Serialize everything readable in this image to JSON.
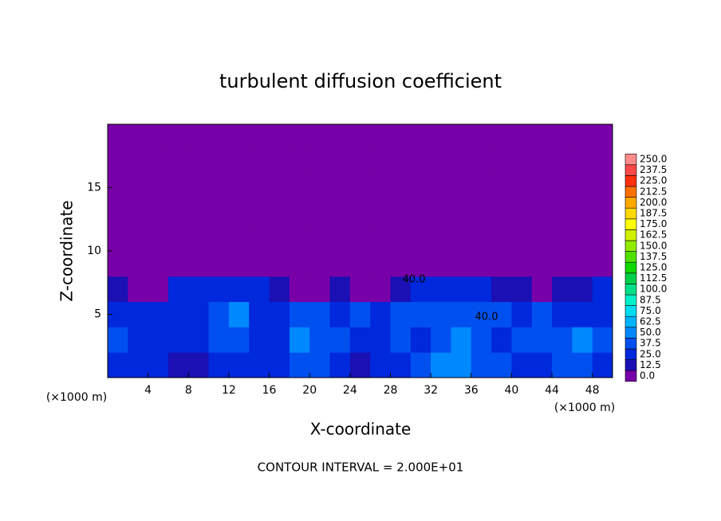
{
  "chart_data": {
    "type": "contour",
    "title": "turbulent diffusion coefficient",
    "x_label": "X-coordinate",
    "y_label": "Z-coordinate",
    "x_unit": "(×1000 m)",
    "y_unit": "(×1000 m)",
    "note": "CONTOUR INTERVAL = 2.000E+01",
    "xlim": [
      0,
      50
    ],
    "ylim": [
      0,
      20
    ],
    "xticks": [
      4,
      8,
      12,
      16,
      20,
      24,
      28,
      32,
      36,
      40,
      44,
      48
    ],
    "yticks": [
      5,
      10,
      15
    ],
    "contour_labels": [
      "40.0",
      "40.0"
    ],
    "levels": [
      {
        "value": 0,
        "label": "0.0"
      },
      {
        "value": 12.5,
        "label": "12.5"
      },
      {
        "value": 25,
        "label": "25.0"
      },
      {
        "value": 37.5,
        "label": "37.5"
      },
      {
        "value": 50,
        "label": "50.0"
      },
      {
        "value": 62.5,
        "label": "62.5"
      },
      {
        "value": 75,
        "label": "75.0"
      },
      {
        "value": 87.5,
        "label": "87.5"
      },
      {
        "value": 100,
        "label": "100.0"
      },
      {
        "value": 112.5,
        "label": "112.5"
      },
      {
        "value": 125,
        "label": "125.0"
      },
      {
        "value": 137.5,
        "label": "137.5"
      },
      {
        "value": 150,
        "label": "150.0"
      },
      {
        "value": 162.5,
        "label": "162.5"
      },
      {
        "value": 175,
        "label": "175.0"
      },
      {
        "value": 187.5,
        "label": "187.5"
      },
      {
        "value": 200,
        "label": "200.0"
      },
      {
        "value": 212.5,
        "label": "212.5"
      },
      {
        "value": 225,
        "label": "225.0"
      },
      {
        "value": 237.5,
        "label": "237.5"
      },
      {
        "value": 250,
        "label": "250.0"
      }
    ],
    "level_colors": [
      "#7800a8",
      "#1a10b4",
      "#0028dc",
      "#0050f0",
      "#0088ff",
      "#00b4ff",
      "#00dcf0",
      "#00f0c8",
      "#00e088",
      "#00d048",
      "#10d800",
      "#50e000",
      "#90ec00",
      "#d0f000",
      "#ffff00",
      "#ffd800",
      "#ffa800",
      "#ff7000",
      "#ff3010",
      "#ff4848",
      "#ff8a8a"
    ],
    "z": [
      [
        35,
        30,
        25,
        20,
        20,
        25,
        30,
        25,
        30,
        40,
        45,
        35,
        20,
        25,
        30,
        40,
        55,
        60,
        45,
        40,
        35,
        30,
        45,
        40,
        35
      ],
      [
        40,
        35,
        30,
        30,
        35,
        40,
        45,
        35,
        35,
        55,
        45,
        40,
        25,
        35,
        40,
        30,
        45,
        50,
        40,
        30,
        40,
        40,
        45,
        50,
        40
      ],
      [
        35,
        30,
        25,
        30,
        35,
        40,
        55,
        35,
        30,
        45,
        40,
        35,
        40,
        35,
        45,
        40,
        45,
        45,
        45,
        40,
        35,
        40,
        35,
        35,
        30
      ],
      [
        20,
        10,
        10,
        25,
        30,
        30,
        30,
        30,
        15,
        10,
        10,
        20,
        10,
        10,
        15,
        30,
        35,
        30,
        25,
        20,
        15,
        10,
        15,
        20,
        25
      ],
      [
        0,
        0,
        0,
        5,
        10,
        10,
        10,
        5,
        0,
        0,
        0,
        0,
        0,
        0,
        0,
        5,
        5,
        0,
        0,
        0,
        0,
        0,
        0,
        0,
        0
      ],
      [
        0,
        0,
        0,
        0,
        0,
        0,
        0,
        0,
        0,
        0,
        0,
        0,
        0,
        0,
        0,
        0,
        0,
        0,
        0,
        0,
        0,
        0,
        0,
        0,
        0
      ],
      [
        0,
        0,
        0,
        0,
        0,
        0,
        0,
        0,
        0,
        0,
        0,
        0,
        0,
        0,
        0,
        0,
        0,
        0,
        0,
        0,
        0,
        0,
        0,
        0,
        0
      ],
      [
        0,
        0,
        0,
        0,
        0,
        0,
        0,
        0,
        0,
        0,
        0,
        0,
        0,
        0,
        0,
        0,
        0,
        0,
        0,
        0,
        0,
        0,
        0,
        0,
        0
      ],
      [
        0,
        0,
        0,
        0,
        0,
        0,
        0,
        0,
        0,
        0,
        0,
        0,
        0,
        0,
        0,
        0,
        0,
        0,
        0,
        0,
        0,
        0,
        0,
        0,
        0
      ],
      [
        0,
        0,
        0,
        0,
        0,
        0,
        0,
        0,
        0,
        0,
        0,
        0,
        0,
        0,
        0,
        0,
        0,
        0,
        0,
        0,
        0,
        0,
        0,
        0,
        0
      ]
    ]
  }
}
